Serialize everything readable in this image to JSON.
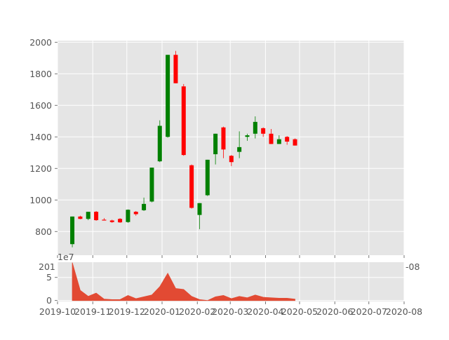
{
  "chart_data": [
    {
      "type": "candlestick",
      "x_axis": "date",
      "xlim": [
        "2019-10-01",
        "2020-08-01"
      ],
      "ylim": [
        650,
        2010
      ],
      "y_ticks": [
        800,
        1000,
        1200,
        1400,
        1600,
        1800,
        2000
      ],
      "x_tick_labels": [
        "2019-10",
        "2019-11",
        "2019-12",
        "2020-01",
        "2020-02",
        "2020-03",
        "2020-04",
        "2020-05",
        "2020-06",
        "2020-07",
        "2020-08"
      ],
      "grid": true,
      "up_color": "#008000",
      "down_color": "#ff0000",
      "candles": [
        {
          "date": "2019-10-14",
          "open": 720,
          "high": 895,
          "low": 700,
          "close": 895
        },
        {
          "date": "2019-10-21",
          "open": 895,
          "high": 900,
          "low": 878,
          "close": 880
        },
        {
          "date": "2019-10-28",
          "open": 880,
          "high": 925,
          "low": 872,
          "close": 925
        },
        {
          "date": "2019-11-04",
          "open": 925,
          "high": 930,
          "low": 868,
          "close": 872
        },
        {
          "date": "2019-11-11",
          "open": 875,
          "high": 885,
          "low": 870,
          "close": 872
        },
        {
          "date": "2019-11-18",
          "open": 870,
          "high": 875,
          "low": 855,
          "close": 860
        },
        {
          "date": "2019-11-25",
          "open": 880,
          "high": 885,
          "low": 855,
          "close": 858
        },
        {
          "date": "2019-12-02",
          "open": 860,
          "high": 940,
          "low": 855,
          "close": 938
        },
        {
          "date": "2019-12-09",
          "open": 925,
          "high": 930,
          "low": 900,
          "close": 910
        },
        {
          "date": "2019-12-16",
          "open": 935,
          "high": 1015,
          "low": 930,
          "close": 975
        },
        {
          "date": "2019-12-23",
          "open": 990,
          "high": 1205,
          "low": 985,
          "close": 1205
        },
        {
          "date": "2019-12-30",
          "open": 1245,
          "high": 1505,
          "low": 1240,
          "close": 1470
        },
        {
          "date": "2020-01-06",
          "open": 1400,
          "high": 1920,
          "low": 1395,
          "close": 1920
        },
        {
          "date": "2020-01-13",
          "open": 1920,
          "high": 1945,
          "low": 1740,
          "close": 1740
        },
        {
          "date": "2020-01-20",
          "open": 1720,
          "high": 1735,
          "low": 1280,
          "close": 1285
        },
        {
          "date": "2020-01-27",
          "open": 1220,
          "high": 1225,
          "low": 945,
          "close": 950
        },
        {
          "date": "2020-02-03",
          "open": 905,
          "high": 980,
          "low": 815,
          "close": 980
        },
        {
          "date": "2020-02-10",
          "open": 1030,
          "high": 1255,
          "low": 1025,
          "close": 1255
        },
        {
          "date": "2020-02-17",
          "open": 1290,
          "high": 1420,
          "low": 1225,
          "close": 1420
        },
        {
          "date": "2020-02-24",
          "open": 1460,
          "high": 1465,
          "low": 1265,
          "close": 1320
        },
        {
          "date": "2020-03-02",
          "open": 1280,
          "high": 1285,
          "low": 1215,
          "close": 1240
        },
        {
          "date": "2020-03-09",
          "open": 1305,
          "high": 1435,
          "low": 1265,
          "close": 1335
        },
        {
          "date": "2020-03-16",
          "open": 1400,
          "high": 1420,
          "low": 1375,
          "close": 1410
        },
        {
          "date": "2020-03-23",
          "open": 1420,
          "high": 1530,
          "low": 1390,
          "close": 1495
        },
        {
          "date": "2020-03-30",
          "open": 1455,
          "high": 1460,
          "low": 1400,
          "close": 1420
        },
        {
          "date": "2020-04-06",
          "open": 1420,
          "high": 1450,
          "low": 1355,
          "close": 1355
        },
        {
          "date": "2020-04-13",
          "open": 1355,
          "high": 1410,
          "low": 1355,
          "close": 1385
        },
        {
          "date": "2020-04-20",
          "open": 1400,
          "high": 1405,
          "low": 1350,
          "close": 1370
        },
        {
          "date": "2020-04-27",
          "open": 1385,
          "high": 1390,
          "low": 1345,
          "close": 1345
        }
      ]
    },
    {
      "type": "area",
      "x_axis": "date",
      "xlim": [
        "2019-10-01",
        "2020-08-01"
      ],
      "ylim": [
        -0.2,
        8.3
      ],
      "y_ticks": [
        0,
        5
      ],
      "y_offset_label": "1e7",
      "x_tick_labels": [
        "2019-10",
        "2019-11",
        "2019-12",
        "2020-01",
        "2020-02",
        "2020-03",
        "2020-04",
        "2020-05",
        "2020-06",
        "2020-07",
        "2020-08"
      ],
      "grid": true,
      "fill_color": "#e24a33",
      "series": [
        {
          "dates": [
            "2019-10-14",
            "2019-10-21",
            "2019-10-28",
            "2019-11-04",
            "2019-11-11",
            "2019-11-18",
            "2019-11-25",
            "2019-12-02",
            "2019-12-09",
            "2019-12-16",
            "2019-12-23",
            "2019-12-30",
            "2020-01-06",
            "2020-01-13",
            "2020-01-20",
            "2020-01-27",
            "2020-02-03",
            "2020-02-10",
            "2020-02-17",
            "2020-02-24",
            "2020-03-02",
            "2020-03-09",
            "2020-03-16",
            "2020-03-23",
            "2020-03-30",
            "2020-04-06",
            "2020-04-13",
            "2020-04-20",
            "2020-04-27"
          ],
          "values": [
            8.2,
            2.2,
            0.9,
            1.6,
            0.3,
            0.2,
            0.2,
            1.1,
            0.4,
            0.8,
            1.2,
            3.0,
            5.9,
            2.6,
            2.4,
            0.9,
            0.2,
            0.0,
            0.8,
            1.1,
            0.4,
            0.9,
            0.6,
            1.2,
            0.7,
            0.6,
            0.5,
            0.5,
            0.3
          ]
        }
      ]
    }
  ],
  "overlap_text": {
    "left_fragment": "201",
    "right_fragment": "-08"
  }
}
